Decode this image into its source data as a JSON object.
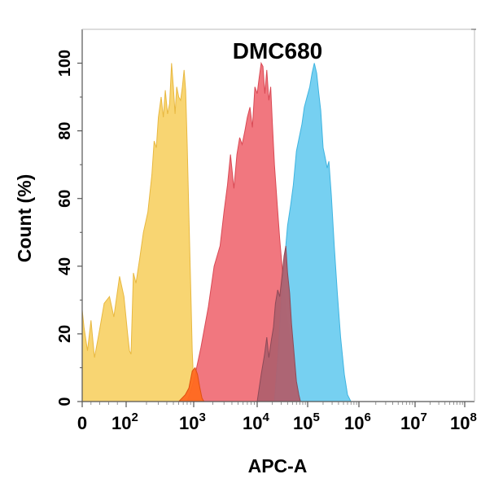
{
  "chart_data": {
    "type": "area",
    "title": "DMC680",
    "xlabel": "APC-A",
    "ylabel": "Count  (%)",
    "x_scale": "biexponential",
    "ylim": [
      0,
      110
    ],
    "y_ticks": [
      0,
      20,
      40,
      60,
      80,
      100
    ],
    "x_ticks": [
      {
        "value": 0,
        "base": "0",
        "exp": ""
      },
      {
        "value": 100,
        "base": "10",
        "exp": "2"
      },
      {
        "value": 1000,
        "base": "10",
        "exp": "3"
      },
      {
        "value": 10000,
        "base": "10",
        "exp": "4"
      },
      {
        "value": 100000,
        "base": "10",
        "exp": "5"
      },
      {
        "value": 1000000,
        "base": "10",
        "exp": "6"
      },
      {
        "value": 10000000,
        "base": "10",
        "exp": "7"
      },
      {
        "value": 100000000,
        "base": "10",
        "exp": "8"
      }
    ],
    "series": [
      {
        "color": "#F8D36A",
        "edge": "#E8B840",
        "points": [
          [
            0,
            27
          ],
          [
            4,
            22
          ],
          [
            12,
            15
          ],
          [
            20,
            24
          ],
          [
            28,
            13
          ],
          [
            38,
            20
          ],
          [
            50,
            29
          ],
          [
            62,
            31
          ],
          [
            72,
            25
          ],
          [
            85,
            37
          ],
          [
            95,
            31
          ],
          [
            105,
            20
          ],
          [
            112,
            15
          ],
          [
            118,
            14
          ],
          [
            128,
            38
          ],
          [
            140,
            35
          ],
          [
            158,
            42
          ],
          [
            180,
            50
          ],
          [
            210,
            56
          ],
          [
            240,
            67
          ],
          [
            260,
            77
          ],
          [
            280,
            75
          ],
          [
            300,
            84
          ],
          [
            330,
            90
          ],
          [
            355,
            84
          ],
          [
            380,
            92
          ],
          [
            410,
            85
          ],
          [
            440,
            88
          ],
          [
            470,
            100
          ],
          [
            500,
            93
          ],
          [
            530,
            85
          ],
          [
            560,
            93
          ],
          [
            600,
            90
          ],
          [
            640,
            89
          ],
          [
            680,
            93
          ],
          [
            720,
            98
          ],
          [
            760,
            92
          ],
          [
            800,
            76
          ],
          [
            850,
            55
          ],
          [
            900,
            35
          ],
          [
            950,
            15
          ],
          [
            1000,
            5
          ],
          [
            1050,
            0
          ]
        ]
      },
      {
        "color": "#F07078",
        "edge": "#D94A55",
        "points": [
          [
            0,
            0
          ],
          [
            800,
            0
          ],
          [
            1000,
            6
          ],
          [
            1300,
            16
          ],
          [
            1700,
            28
          ],
          [
            2100,
            40
          ],
          [
            2600,
            46
          ],
          [
            3000,
            56
          ],
          [
            3400,
            64
          ],
          [
            3800,
            73
          ],
          [
            4300,
            63
          ],
          [
            4800,
            73
          ],
          [
            5300,
            78
          ],
          [
            5800,
            76
          ],
          [
            6400,
            80
          ],
          [
            7000,
            84
          ],
          [
            7700,
            87
          ],
          [
            8400,
            81
          ],
          [
            9200,
            93
          ],
          [
            10000,
            91
          ],
          [
            11000,
            96
          ],
          [
            12000,
            100
          ],
          [
            13000,
            99
          ],
          [
            14200,
            91
          ],
          [
            15500,
            98
          ],
          [
            17000,
            89
          ],
          [
            18500,
            93
          ],
          [
            20000,
            82
          ],
          [
            22000,
            70
          ],
          [
            25000,
            58
          ],
          [
            28000,
            48
          ],
          [
            32000,
            38
          ],
          [
            37000,
            28
          ],
          [
            43000,
            20
          ],
          [
            50000,
            8
          ],
          [
            57000,
            2
          ],
          [
            65000,
            0
          ]
        ]
      },
      {
        "color": "#6FCDF0",
        "edge": "#3FB4E0",
        "points": [
          [
            0,
            0
          ],
          [
            22000,
            0
          ],
          [
            26000,
            14
          ],
          [
            30000,
            30
          ],
          [
            35000,
            42
          ],
          [
            40000,
            52
          ],
          [
            46000,
            58
          ],
          [
            52000,
            64
          ],
          [
            60000,
            74
          ],
          [
            68000,
            78
          ],
          [
            77000,
            82
          ],
          [
            86000,
            87
          ],
          [
            97000,
            90
          ],
          [
            110000,
            93
          ],
          [
            122000,
            97
          ],
          [
            135000,
            100
          ],
          [
            150000,
            97
          ],
          [
            165000,
            91
          ],
          [
            180000,
            86
          ],
          [
            200000,
            75
          ],
          [
            220000,
            72
          ],
          [
            240000,
            69
          ],
          [
            260000,
            71
          ],
          [
            290000,
            61
          ],
          [
            330000,
            46
          ],
          [
            380000,
            32
          ],
          [
            440000,
            19
          ],
          [
            520000,
            8
          ],
          [
            600000,
            2
          ],
          [
            700000,
            0
          ]
        ]
      },
      {
        "color": "#B0606E",
        "edge": "#8C4A58",
        "points": [
          [
            0,
            0
          ],
          [
            10000,
            0
          ],
          [
            12000,
            8
          ],
          [
            14000,
            14
          ],
          [
            15500,
            19
          ],
          [
            17000,
            13
          ],
          [
            19000,
            18
          ],
          [
            21000,
            22
          ],
          [
            23000,
            29
          ],
          [
            25500,
            33
          ],
          [
            28000,
            31
          ],
          [
            31000,
            37
          ],
          [
            34000,
            43
          ],
          [
            37000,
            46
          ],
          [
            40000,
            38
          ],
          [
            44000,
            32
          ],
          [
            48000,
            23
          ],
          [
            54000,
            14
          ],
          [
            60000,
            6
          ],
          [
            67000,
            2
          ],
          [
            72000,
            0
          ]
        ]
      },
      {
        "color": "#FF6A20",
        "edge": "#E05010",
        "points": [
          [
            0,
            0
          ],
          [
            600,
            0
          ],
          [
            750,
            2
          ],
          [
            850,
            4
          ],
          [
            950,
            9
          ],
          [
            1050,
            10
          ],
          [
            1150,
            8
          ],
          [
            1250,
            4
          ],
          [
            1350,
            1
          ],
          [
            1450,
            0
          ]
        ]
      }
    ]
  }
}
